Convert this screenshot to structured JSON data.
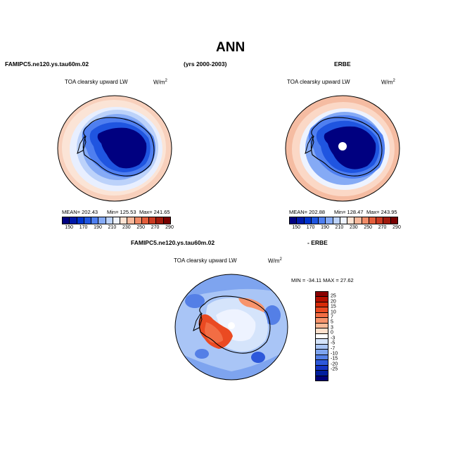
{
  "page_title": "ANN",
  "left_header": "FAMIPC5.ne120.ys.tau60m.02",
  "center_header": "(yrs 2000-2003)",
  "right_header": "ERBE",
  "diff_header_left": "FAMIPC5.ne120.ys.tau60m.02",
  "diff_header_right": "- ERBE",
  "panels": [
    {
      "id": "model",
      "variable": "TOA clearsky upward LW",
      "units": "W/m",
      "units_exp": "2",
      "mean_label": "MEAN= 202.43",
      "min_label": "Min= 125.53",
      "max_label": "Max= 241.65"
    },
    {
      "id": "obs",
      "variable": "TOA clearsky upward LW",
      "units": "W/m",
      "units_exp": "2",
      "mean_label": "MEAN= 202.88",
      "min_label": "Min= 128.47",
      "max_label": "Max= 243.95"
    },
    {
      "id": "diff",
      "variable": "TOA clearsky upward LW",
      "units": "W/m",
      "units_exp": "2",
      "minmax_label": "MIN = -34.11  MAX =  27.62"
    }
  ],
  "abs_colorbar": {
    "colors": [
      "#000080",
      "#0018a8",
      "#0033cc",
      "#1f55e0",
      "#4f7ff0",
      "#85aaf5",
      "#bcd2fa",
      "#eef3ff",
      "#ffe3d3",
      "#f8b99c",
      "#f08c68",
      "#e35e3c",
      "#c93a22",
      "#a01a0c",
      "#780000"
    ],
    "labels": [
      "150",
      "170",
      "190",
      "210",
      "230",
      "250",
      "270",
      "290"
    ]
  },
  "diff_colorbar": {
    "colors": [
      "#8a0000",
      "#b50f00",
      "#d62a08",
      "#ea4a22",
      "#f26d44",
      "#f7946c",
      "#fbbb98",
      "#fde0cc",
      "#ffffff",
      "#d5e4fb",
      "#a9c5f6",
      "#7ea4ef",
      "#547fe6",
      "#2d58da",
      "#1433c2",
      "#001e9e",
      "#000078"
    ],
    "labels": [
      "25",
      "20",
      "15",
      "10",
      "7",
      "5",
      "3",
      "0",
      "-3",
      "-5",
      "-7",
      "-10",
      "-15",
      "-20",
      "-25"
    ]
  },
  "map_colors": {
    "ocean_warm": "#f6c3ad",
    "mid": "#bcd2fa",
    "cold": "#2d5be0",
    "deep": "#000080",
    "diff_bg": "#7ea4ef",
    "diff_pos": "#ea4a22",
    "diff_light": "#c7d9fb"
  }
}
